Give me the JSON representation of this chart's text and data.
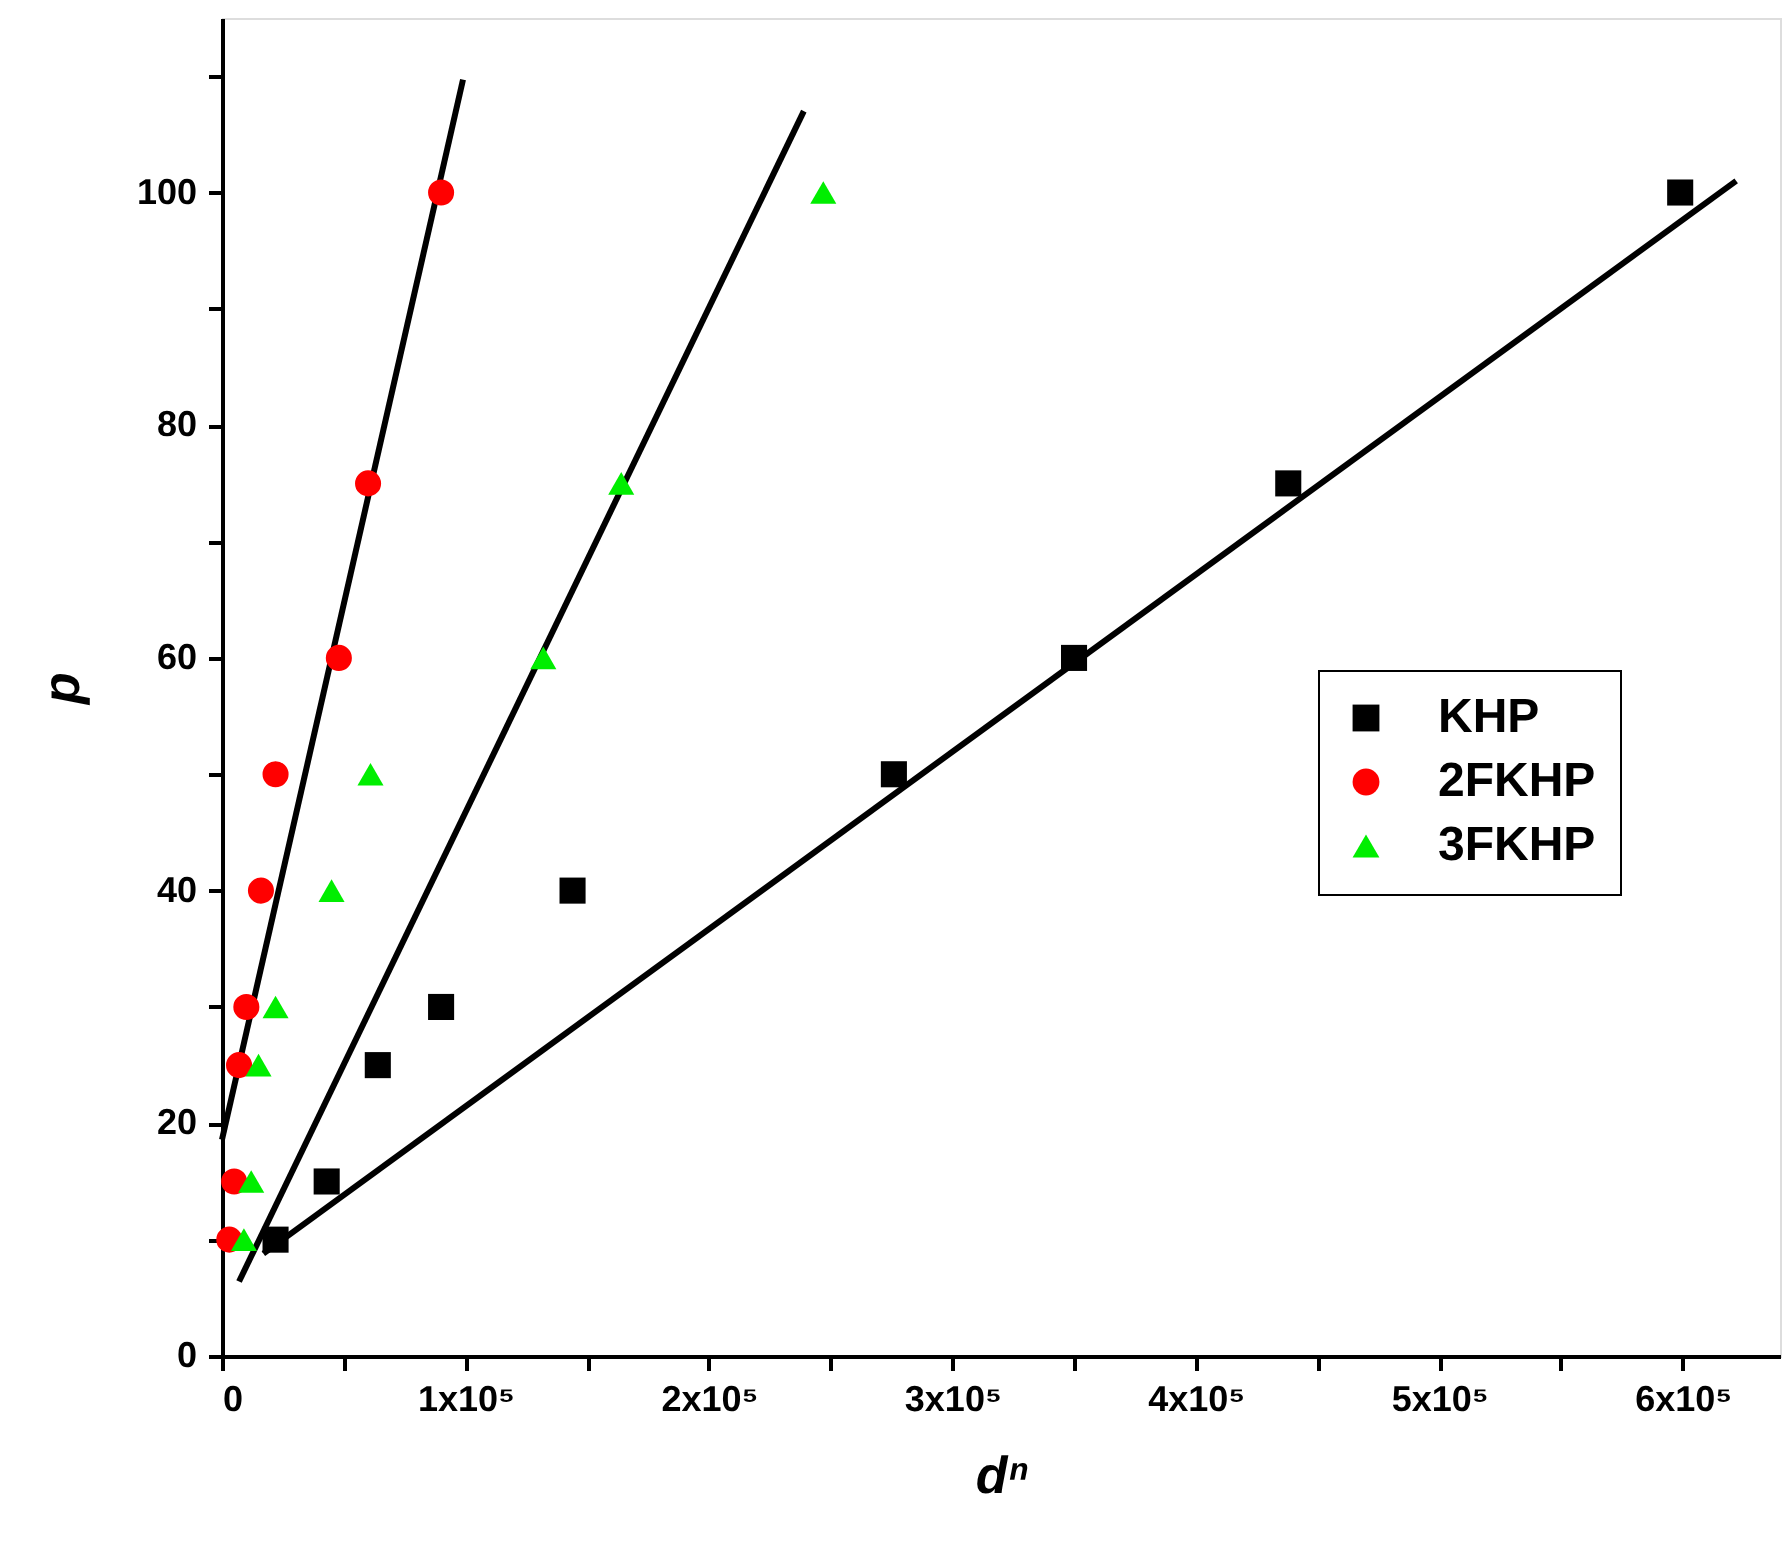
{
  "chart_data": {
    "type": "scatter",
    "xlabel": "dⁿ",
    "ylabel": "p",
    "xlim": [
      0,
      640000
    ],
    "ylim": [
      0,
      115
    ],
    "xticks": [
      0,
      {
        "value": 50000,
        "label": null
      },
      {
        "value": 100000,
        "label": "1x10⁵"
      },
      {
        "value": 150000,
        "label": null
      },
      {
        "value": 200000,
        "label": "2x10⁵"
      },
      {
        "value": 250000,
        "label": null
      },
      {
        "value": 300000,
        "label": "3x10⁵"
      },
      {
        "value": 350000,
        "label": null
      },
      {
        "value": 400000,
        "label": "4x10⁵"
      },
      {
        "value": 450000,
        "label": null
      },
      {
        "value": 500000,
        "label": "5x10⁵"
      },
      {
        "value": 550000,
        "label": null
      },
      {
        "value": 600000,
        "label": "6x10⁵"
      }
    ],
    "yticks": [
      0,
      {
        "value": 10,
        "label": null
      },
      20,
      {
        "value": 30,
        "label": null
      },
      40,
      {
        "value": 50,
        "label": null
      },
      60,
      {
        "value": 70,
        "label": null
      },
      80,
      {
        "value": 90,
        "label": null
      },
      100,
      {
        "value": 110,
        "label": null
      }
    ],
    "grid": false,
    "legend": "right",
    "series": [
      {
        "name": "KHP",
        "color": "#000000",
        "marker": "square",
        "x": [
          22000,
          43000,
          64000,
          90000,
          144000,
          276000,
          350000,
          438000,
          599000
        ],
        "values": [
          10,
          15,
          25,
          30,
          40,
          50,
          60,
          75,
          100
        ]
      },
      {
        "name": "2FKHP",
        "color": "#ff0000",
        "marker": "circle",
        "x": [
          3000,
          5000,
          7000,
          10000,
          16000,
          22000,
          48000,
          60000,
          90000
        ],
        "values": [
          10,
          15,
          25,
          30,
          40,
          50,
          60,
          75,
          100
        ]
      },
      {
        "name": "3FKHP",
        "color": "#00ee00",
        "marker": "triangle",
        "x": [
          9000,
          12000,
          15000,
          22000,
          45000,
          61000,
          132000,
          164000,
          247000
        ],
        "values": [
          10,
          15,
          25,
          30,
          40,
          50,
          60,
          75,
          100
        ]
      },
      {
        "type": "line",
        "color": "#000000",
        "line_style": "solid",
        "x": [
          17000,
          622000
        ],
        "values": [
          8.8,
          101
        ]
      },
      {
        "type": "line",
        "color": "#000000",
        "line_style": "solid",
        "x": [
          0,
          99000
        ],
        "values": [
          18.6,
          109.7
        ]
      },
      {
        "type": "line",
        "color": "#000000",
        "line_style": "solid",
        "x": [
          7000,
          239000
        ],
        "values": [
          6.4,
          107
        ]
      }
    ]
  }
}
